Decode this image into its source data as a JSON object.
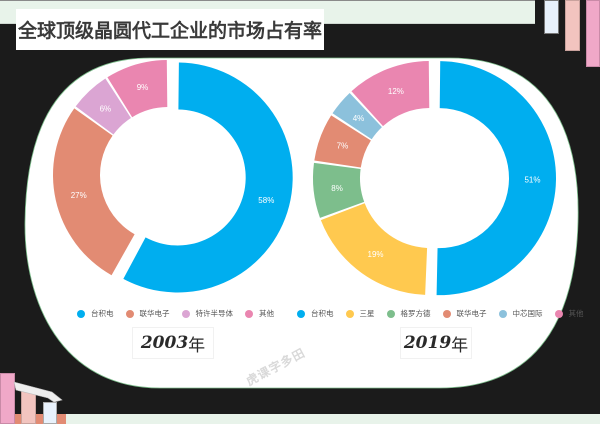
{
  "title": "全球顶级晶圆代工企业的市场占有率",
  "watermark": "虎课字多田",
  "charts": [
    {
      "year_num": "2003",
      "year_suffix": "年",
      "legend": [
        {
          "label": "台积电",
          "color": "#00aeef"
        },
        {
          "label": "联华电子",
          "color": "#e28b73"
        },
        {
          "label": "特许半导体",
          "color": "#dba5d3"
        },
        {
          "label": "其他",
          "color": "#ea86b0"
        }
      ]
    },
    {
      "year_num": "2019",
      "year_suffix": "年",
      "legend": [
        {
          "label": "台积电",
          "color": "#00aeef"
        },
        {
          "label": "三星",
          "color": "#ffc94f"
        },
        {
          "label": "格罗方德",
          "color": "#7dbe8c"
        },
        {
          "label": "联华电子",
          "color": "#e28b73"
        },
        {
          "label": "中芯国际",
          "color": "#8cc1dc"
        },
        {
          "label": "其他",
          "color": "#ea86b0"
        }
      ]
    }
  ],
  "chart_data": [
    {
      "type": "pie",
      "subtype": "donut",
      "title": "2003年",
      "categories": [
        "台积电",
        "联华电子",
        "特许半导体",
        "其他"
      ],
      "values": [
        58,
        27,
        6,
        9
      ],
      "labels": [
        "58%",
        "27%",
        "6%",
        "9%"
      ],
      "colors": [
        "#00aeef",
        "#e28b73",
        "#dba5d3",
        "#ea86b0"
      ],
      "exploded": [
        "台积电"
      ],
      "legend_position": "bottom"
    },
    {
      "type": "pie",
      "subtype": "donut",
      "title": "2019年",
      "categories": [
        "台积电",
        "三星",
        "格罗方德",
        "联华电子",
        "中芯国际",
        "其他"
      ],
      "values": [
        51,
        19,
        8,
        7,
        4,
        12
      ],
      "labels": [
        "51%",
        "19%",
        "8%",
        "7%",
        "4%",
        "12%"
      ],
      "colors": [
        "#00aeef",
        "#ffc94f",
        "#7dbe8c",
        "#e28b73",
        "#8cc1dc",
        "#ea86b0"
      ],
      "exploded": [
        "台积电"
      ],
      "legend_position": "bottom"
    }
  ]
}
